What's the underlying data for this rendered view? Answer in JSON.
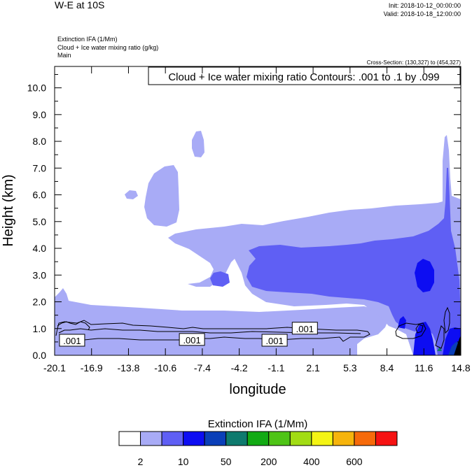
{
  "header": {
    "title": "W-E at 10S",
    "init": "Init: 2018-10-12_00:00:00",
    "valid": "Valid: 2018-10-18_12:00:00",
    "field1": "Extinction IFA   (1/Mm)",
    "field2": "Cloud + Ice water mixing ratio   (g/kg)",
    "field3": "Main",
    "cross_section": "Cross-Section: (130,327) to (454,327)",
    "contour_info": "Cloud + Ice water mixing ratio Contours: .001 to .1 by .099"
  },
  "chart_data": {
    "type": "heatmap",
    "xlabel": "longitude",
    "ylabel": "Height (km)",
    "x_ticks": [
      "-20.1",
      "-16.9",
      "-13.8",
      "-10.6",
      "-7.4",
      "-4.2",
      "-1.1",
      "2.1",
      "5.3",
      "8.4",
      "11.6",
      "14.8"
    ],
    "y_ticks": [
      "0.0",
      "1.0",
      "2.0",
      "3.0",
      "4.0",
      "5.0",
      "6.0",
      "7.0",
      "8.0",
      "9.0",
      "10.0"
    ],
    "xlim": [
      -20.1,
      14.8
    ],
    "ylim": [
      0,
      10.8
    ],
    "contour_labels": [
      {
        "text": ".001",
        "x": -18.6,
        "y": 0.55
      },
      {
        "text": ".001",
        "x": -8.3,
        "y": 0.58
      },
      {
        "text": ".001",
        "x": -1.2,
        "y": 0.55
      },
      {
        "text": ".001",
        "x": 1.4,
        "y": 1.0
      }
    ],
    "legend": {
      "title": "Extinction IFA  (1/Mm)",
      "labels": [
        "2",
        "10",
        "50",
        "200",
        "400",
        "600"
      ],
      "colors": [
        "#ffffff",
        "#a8abf6",
        "#5f5ff4",
        "#0d0df2",
        "#0a3fb8",
        "#0e7a6e",
        "#12aa14",
        "#4ec416",
        "#a2dc14",
        "#f4f414",
        "#f6b40c",
        "#f66a0a",
        "#f61212"
      ]
    }
  }
}
